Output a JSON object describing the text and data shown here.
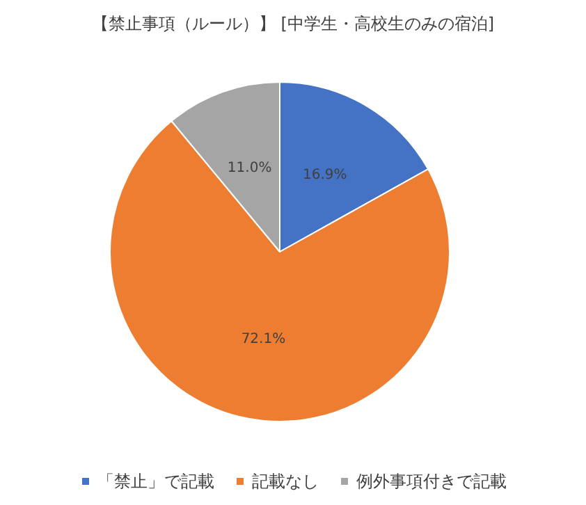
{
  "chart_data": {
    "type": "pie",
    "title": "【禁止事項（ルール）】 [中学生・高校生のみの宿泊]",
    "categories": [
      "「禁止」で記載",
      "記載なし",
      "例外事項付きで記載"
    ],
    "values": [
      16.9,
      72.1,
      11.0
    ],
    "colors": [
      "#4472c4",
      "#ed7d31",
      "#a5a5a5"
    ],
    "value_labels": [
      "16.9%",
      "72.1%",
      "11.0%"
    ],
    "legend": "bottom"
  }
}
